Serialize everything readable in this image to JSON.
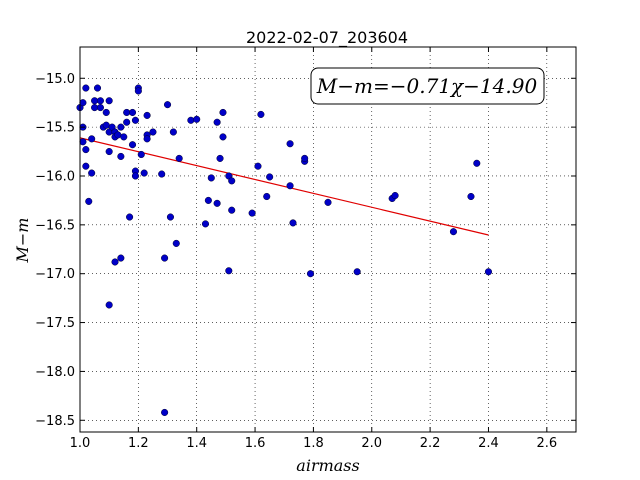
{
  "chart_data": {
    "type": "scatter",
    "title": "2022-02-07_203604",
    "xlabel": "airmass",
    "ylabel": "M−m",
    "xlim": [
      1.0,
      2.7
    ],
    "ylim": [
      -18.62,
      -14.68
    ],
    "xticks": [
      1.0,
      1.2,
      1.4,
      1.6,
      1.8,
      2.0,
      2.2,
      2.4,
      2.6
    ],
    "xtick_labels": [
      "1.0",
      "1.2",
      "1.4",
      "1.6",
      "1.8",
      "2.0",
      "2.2",
      "2.4",
      "2.6"
    ],
    "yticks": [
      -15.0,
      -15.5,
      -16.0,
      -16.5,
      -17.0,
      -17.5,
      -18.0,
      -18.5
    ],
    "ytick_labels": [
      "−15.0",
      "−15.5",
      "−16.0",
      "−16.5",
      "−17.0",
      "−17.5",
      "−18.0",
      "−18.5"
    ],
    "grid": true,
    "annotation": "M−m=−0.71χ−14.90",
    "point_color": "#0000c8",
    "fit_color": "#e00000",
    "fit": {
      "slope": -0.71,
      "intercept": -14.9,
      "x_range": [
        1.0,
        2.4
      ]
    },
    "points": [
      [
        1.0,
        -15.3
      ],
      [
        1.01,
        -15.25
      ],
      [
        1.01,
        -15.5
      ],
      [
        1.02,
        -15.1
      ],
      [
        1.01,
        -15.65
      ],
      [
        1.02,
        -15.73
      ],
      [
        1.02,
        -15.9
      ],
      [
        1.03,
        -16.26
      ],
      [
        1.04,
        -15.97
      ],
      [
        1.04,
        -15.62
      ],
      [
        1.05,
        -15.3
      ],
      [
        1.05,
        -15.23
      ],
      [
        1.06,
        -15.1
      ],
      [
        1.07,
        -15.23
      ],
      [
        1.07,
        -15.3
      ],
      [
        1.08,
        -15.5
      ],
      [
        1.09,
        -15.35
      ],
      [
        1.09,
        -15.48
      ],
      [
        1.1,
        -15.23
      ],
      [
        1.1,
        -15.55
      ],
      [
        1.1,
        -15.75
      ],
      [
        1.11,
        -15.5
      ],
      [
        1.12,
        -15.55
      ],
      [
        1.12,
        -15.6
      ],
      [
        1.13,
        -15.58
      ],
      [
        1.14,
        -15.5
      ],
      [
        1.14,
        -15.8
      ],
      [
        1.15,
        -15.6
      ],
      [
        1.16,
        -15.35
      ],
      [
        1.16,
        -15.45
      ],
      [
        1.17,
        -16.42
      ],
      [
        1.18,
        -15.35
      ],
      [
        1.18,
        -15.68
      ],
      [
        1.19,
        -15.43
      ],
      [
        1.19,
        -15.95
      ],
      [
        1.19,
        -16.0
      ],
      [
        1.2,
        -15.1
      ],
      [
        1.2,
        -15.13
      ],
      [
        1.21,
        -15.78
      ],
      [
        1.22,
        -15.97
      ],
      [
        1.23,
        -15.38
      ],
      [
        1.23,
        -15.58
      ],
      [
        1.23,
        -15.62
      ],
      [
        1.25,
        -15.55
      ],
      [
        1.28,
        -15.98
      ],
      [
        1.29,
        -16.84
      ],
      [
        1.3,
        -15.27
      ],
      [
        1.31,
        -16.42
      ],
      [
        1.32,
        -15.55
      ],
      [
        1.33,
        -16.69
      ],
      [
        1.34,
        -15.82
      ],
      [
        1.38,
        -15.43
      ],
      [
        1.4,
        -15.42
      ],
      [
        1.43,
        -16.49
      ],
      [
        1.44,
        -16.25
      ],
      [
        1.45,
        -16.02
      ],
      [
        1.47,
        -15.45
      ],
      [
        1.47,
        -16.28
      ],
      [
        1.48,
        -15.82
      ],
      [
        1.49,
        -15.6
      ],
      [
        1.49,
        -15.35
      ],
      [
        1.51,
        -16.0
      ],
      [
        1.52,
        -16.05
      ],
      [
        1.52,
        -16.35
      ],
      [
        1.59,
        -16.38
      ],
      [
        1.61,
        -15.9
      ],
      [
        1.62,
        -15.37
      ],
      [
        1.64,
        -16.21
      ],
      [
        1.65,
        -16.01
      ],
      [
        1.72,
        -15.67
      ],
      [
        1.72,
        -16.1
      ],
      [
        1.73,
        -16.48
      ],
      [
        1.77,
        -15.85
      ],
      [
        1.77,
        -15.82
      ],
      [
        1.85,
        -16.27
      ],
      [
        1.95,
        -16.98
      ],
      [
        2.07,
        -16.23
      ],
      [
        2.08,
        -16.2
      ],
      [
        2.28,
        -16.57
      ],
      [
        2.34,
        -16.21
      ],
      [
        2.36,
        -15.87
      ],
      [
        2.4,
        -16.98
      ],
      [
        1.1,
        -17.32
      ],
      [
        1.12,
        -16.88
      ],
      [
        1.14,
        -16.84
      ],
      [
        1.29,
        -18.42
      ],
      [
        1.51,
        -16.97
      ],
      [
        1.79,
        -17.0
      ]
    ]
  }
}
